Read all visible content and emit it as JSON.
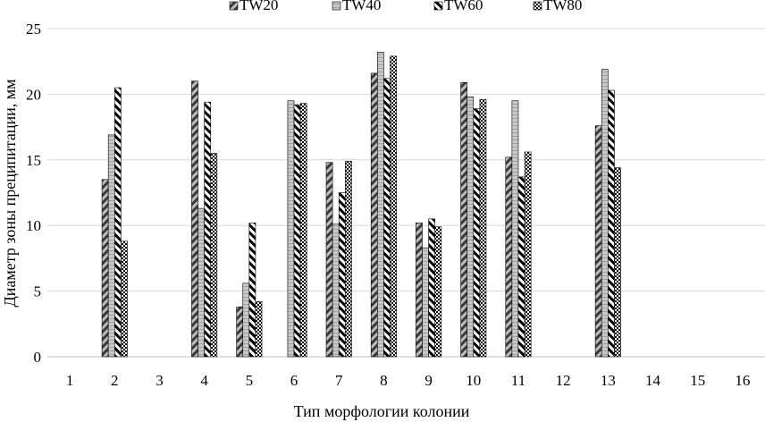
{
  "chart_data": {
    "type": "bar",
    "xlabel": "Тип морфологии колонии",
    "ylabel": "Диаметр зоны преципитации, мм",
    "ylim": [
      0,
      25
    ],
    "yticks": [
      "0",
      "5",
      "10",
      "15",
      "20",
      "25"
    ],
    "categories": [
      "1",
      "2",
      "3",
      "4",
      "5",
      "6",
      "7",
      "8",
      "9",
      "10",
      "11",
      "12",
      "13",
      "14",
      "15",
      "16"
    ],
    "grid": "horizontal",
    "legend": "top",
    "series": [
      {
        "name": "TW20",
        "pattern": "diagonal-dark",
        "values": [
          null,
          13.5,
          null,
          21.0,
          3.8,
          null,
          14.8,
          21.6,
          10.2,
          20.9,
          15.2,
          null,
          17.6,
          null,
          null,
          null
        ]
      },
      {
        "name": "TW40",
        "pattern": "light-grey",
        "values": [
          null,
          16.9,
          null,
          11.3,
          5.6,
          19.5,
          10.1,
          23.2,
          8.3,
          19.8,
          19.5,
          null,
          21.9,
          null,
          null,
          null
        ]
      },
      {
        "name": "TW60",
        "pattern": "diagonal-black",
        "values": [
          null,
          20.5,
          null,
          19.4,
          10.2,
          19.2,
          12.5,
          21.2,
          10.5,
          18.9,
          13.7,
          null,
          20.3,
          null,
          null,
          null
        ]
      },
      {
        "name": "TW80",
        "pattern": "checker",
        "values": [
          null,
          8.8,
          null,
          15.5,
          4.2,
          19.3,
          14.9,
          22.9,
          9.9,
          19.6,
          15.6,
          null,
          14.4,
          null,
          null,
          null
        ]
      }
    ]
  }
}
